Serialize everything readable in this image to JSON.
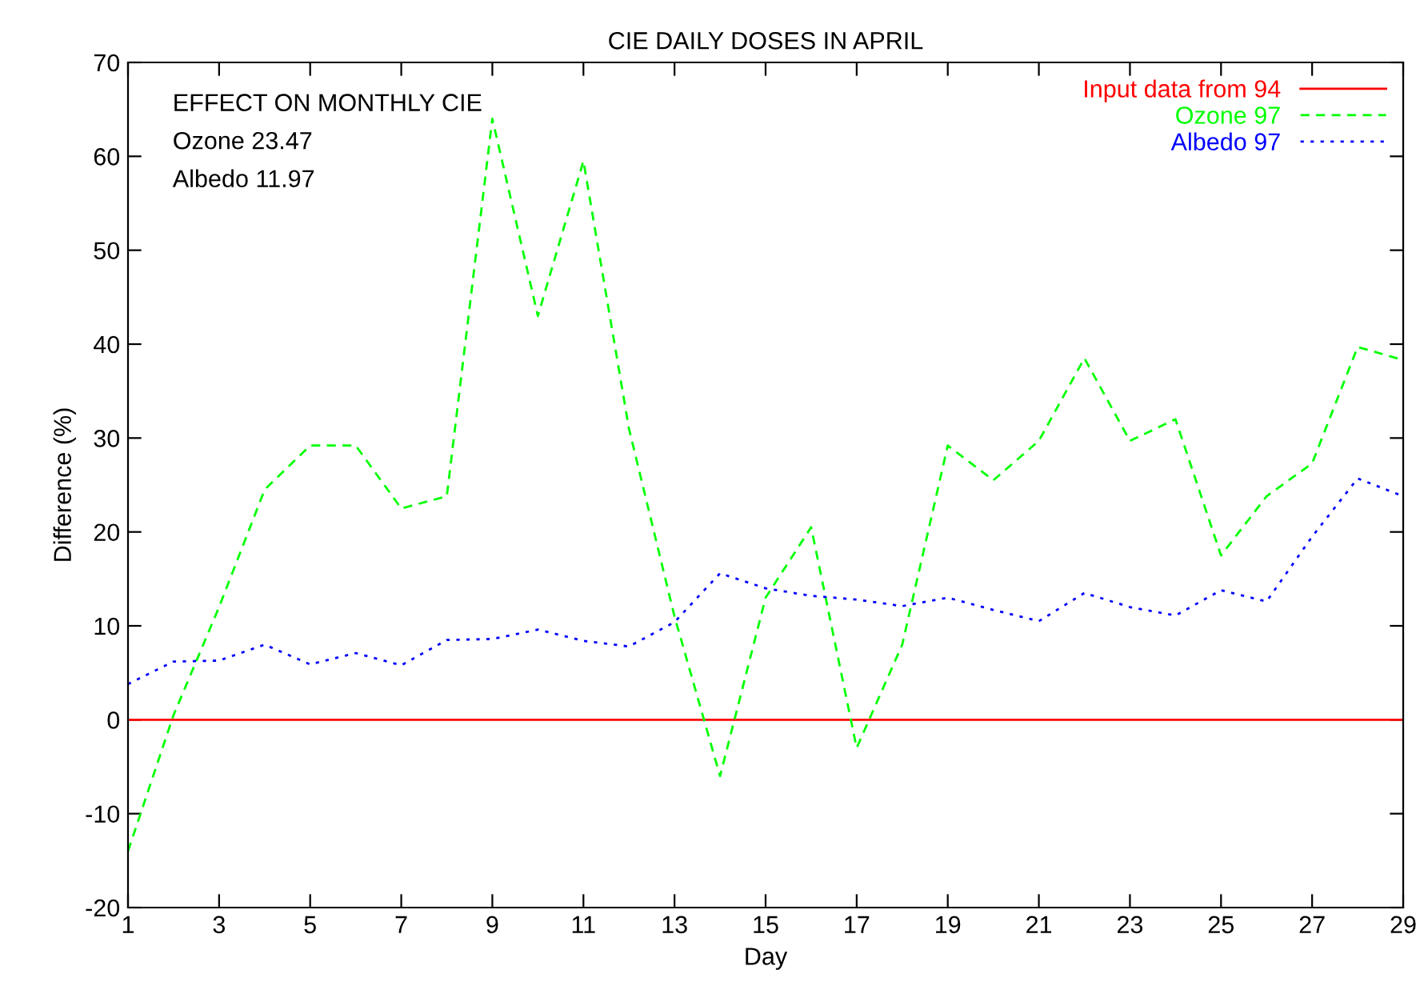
{
  "chart_data": {
    "type": "line",
    "title": "CIE DAILY DOSES IN APRIL",
    "xlabel": "Day",
    "ylabel": "Difference (%)",
    "annotations": [
      "EFFECT ON MONTHLY CIE",
      "Ozone 23.47",
      "Albedo 11.97"
    ],
    "x": [
      1,
      2,
      3,
      4,
      5,
      6,
      7,
      8,
      9,
      10,
      11,
      12,
      13,
      14,
      15,
      16,
      17,
      18,
      19,
      20,
      21,
      22,
      23,
      24,
      25,
      26,
      27,
      28,
      29
    ],
    "series": [
      {
        "name": "Input data from 94",
        "color": "#ff0000",
        "line_style": "solid",
        "values": [
          0,
          0,
          0,
          0,
          0,
          0,
          0,
          0,
          0,
          0,
          0,
          0,
          0,
          0,
          0,
          0,
          0,
          0,
          0,
          0,
          0,
          0,
          0,
          0,
          0,
          0,
          0,
          0,
          0
        ]
      },
      {
        "name": "Ozone 97",
        "color": "#00ff00",
        "line_style": "dashed",
        "values": [
          -14,
          0.5,
          12,
          24.5,
          29.2,
          29.2,
          22.5,
          23.8,
          64,
          43,
          59.5,
          31,
          11,
          -6,
          13,
          20.5,
          -3,
          8,
          29.2,
          25.5,
          29.7,
          38.5,
          29.7,
          32,
          17.5,
          23.8,
          27.3,
          39.7,
          38.3
        ]
      },
      {
        "name": "Albedo 97",
        "color": "#0000ff",
        "line_style": "dotted",
        "values": [
          3.8,
          6.2,
          6.3,
          8.0,
          5.9,
          7.1,
          5.8,
          8.5,
          8.6,
          9.6,
          8.4,
          7.8,
          10.4,
          15.6,
          14.0,
          13.2,
          12.8,
          12.1,
          13.0,
          11.7,
          10.5,
          13.5,
          12.0,
          11.1,
          13.8,
          12.6,
          19.5,
          25.7,
          23.8
        ]
      }
    ],
    "xlim": [
      1,
      29
    ],
    "xticks": [
      1,
      3,
      5,
      7,
      9,
      11,
      13,
      15,
      17,
      19,
      21,
      23,
      25,
      27,
      29
    ],
    "ylim": [
      -20,
      70
    ],
    "yticks": [
      -20,
      -10,
      0,
      10,
      20,
      30,
      40,
      50,
      60,
      70
    ],
    "grid": false,
    "legend": "top right",
    "marker": "none"
  }
}
